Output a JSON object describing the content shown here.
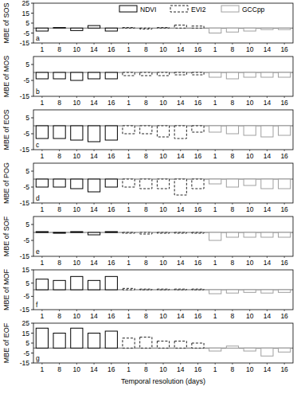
{
  "chart_data": [
    {
      "type": "bar",
      "annotation": "a",
      "y_label": "MBE of SOS",
      "legend": "top",
      "categories": [
        "1",
        "8",
        "10",
        "14",
        "16",
        "1",
        "8",
        "10",
        "14",
        "16",
        "1",
        "8",
        "10",
        "14",
        "16"
      ],
      "ylim": [
        -15,
        25
      ],
      "yticks": [
        -15,
        -5,
        5,
        15,
        25
      ],
      "series": [
        {
          "name": "NDVI",
          "color": "#000000",
          "line_style": "solid",
          "values": [
            -3,
            0.5,
            -2.5,
            2.5,
            -3,
            null,
            null,
            null,
            null,
            null,
            null,
            null,
            null,
            null,
            null
          ]
        },
        {
          "name": "EVI2",
          "color": "#222222",
          "line_style": "dashed",
          "values": [
            null,
            null,
            null,
            null,
            null,
            0.5,
            -1,
            0.5,
            3,
            2,
            null,
            null,
            null,
            null,
            null
          ]
        },
        {
          "name": "GCCpp",
          "color": "#a0a0a0",
          "line_style": "solid",
          "values": [
            null,
            null,
            null,
            null,
            null,
            null,
            null,
            null,
            null,
            null,
            -5,
            -4,
            -3,
            -1.5,
            -1.5
          ]
        }
      ]
    },
    {
      "type": "bar",
      "annotation": "b",
      "y_label": "MBE of MOS",
      "categories": [
        "1",
        "8",
        "10",
        "14",
        "16",
        "1",
        "8",
        "10",
        "14",
        "16",
        "1",
        "8",
        "10",
        "14",
        "16"
      ],
      "ylim": [
        -15,
        10
      ],
      "yticks": [
        -15,
        -5,
        5
      ],
      "series": [
        {
          "color": "#000000",
          "line_style": "solid",
          "values": [
            -4,
            -4,
            -5,
            -4,
            -4,
            null,
            null,
            null,
            null,
            null,
            null,
            null,
            null,
            null,
            null
          ]
        },
        {
          "color": "#222222",
          "line_style": "dashed",
          "values": [
            null,
            null,
            null,
            null,
            null,
            -2,
            -2,
            -2,
            -1.5,
            -1.5,
            null,
            null,
            null,
            null,
            null
          ]
        },
        {
          "color": "#a0a0a0",
          "line_style": "solid",
          "values": [
            null,
            null,
            null,
            null,
            null,
            null,
            null,
            null,
            null,
            null,
            -3,
            -4,
            -3,
            -3,
            -3
          ]
        }
      ]
    },
    {
      "type": "bar",
      "annotation": "c",
      "y_label": "MBE of EOS",
      "categories": [
        "1",
        "8",
        "10",
        "14",
        "16",
        "1",
        "8",
        "10",
        "14",
        "16",
        "1",
        "8",
        "10",
        "14",
        "16"
      ],
      "ylim": [
        -15,
        10
      ],
      "yticks": [
        -15,
        -5,
        5
      ],
      "series": [
        {
          "color": "#000000",
          "line_style": "solid",
          "values": [
            -8,
            -8,
            -9,
            -10,
            -9,
            null,
            null,
            null,
            null,
            null,
            null,
            null,
            null,
            null,
            null
          ]
        },
        {
          "color": "#222222",
          "line_style": "dashed",
          "values": [
            null,
            null,
            null,
            null,
            null,
            -5,
            -5,
            -7,
            -8,
            -4,
            null,
            null,
            null,
            null,
            null
          ]
        },
        {
          "color": "#a0a0a0",
          "line_style": "solid",
          "values": [
            null,
            null,
            null,
            null,
            null,
            null,
            null,
            null,
            null,
            null,
            -4,
            -5,
            -6,
            -7,
            -6
          ]
        }
      ]
    },
    {
      "type": "bar",
      "annotation": "d",
      "y_label": "MBE of POG",
      "categories": [
        "1",
        "8",
        "10",
        "14",
        "16",
        "1",
        "8",
        "10",
        "14",
        "16",
        "1",
        "8",
        "10",
        "14",
        "16"
      ],
      "ylim": [
        -15,
        10
      ],
      "yticks": [
        -15,
        -5,
        5
      ],
      "series": [
        {
          "color": "#000000",
          "line_style": "solid",
          "values": [
            -5,
            -5,
            -6,
            -8,
            -5,
            null,
            null,
            null,
            null,
            null,
            null,
            null,
            null,
            null,
            null
          ]
        },
        {
          "color": "#222222",
          "line_style": "dashed",
          "values": [
            null,
            null,
            null,
            null,
            null,
            -5,
            -6,
            -6,
            -10,
            -6,
            null,
            null,
            null,
            null,
            null
          ]
        },
        {
          "color": "#a0a0a0",
          "line_style": "solid",
          "values": [
            null,
            null,
            null,
            null,
            null,
            null,
            null,
            null,
            null,
            null,
            -3,
            -5,
            -4,
            -6,
            -6
          ]
        }
      ]
    },
    {
      "type": "bar",
      "annotation": "e",
      "y_label": "MBE of SOF",
      "categories": [
        "1",
        "8",
        "10",
        "14",
        "16",
        "1",
        "8",
        "10",
        "14",
        "16",
        "1",
        "8",
        "10",
        "14",
        "16"
      ],
      "ylim": [
        -15,
        10
      ],
      "yticks": [
        -15,
        -5,
        5
      ],
      "series": [
        {
          "color": "#000000",
          "line_style": "solid",
          "values": [
            0.5,
            -0.5,
            0.5,
            -1.5,
            0.5,
            null,
            null,
            null,
            null,
            null,
            null,
            null,
            null,
            null,
            null
          ]
        },
        {
          "color": "#222222",
          "line_style": "dashed",
          "values": [
            null,
            null,
            null,
            null,
            null,
            -0.5,
            -1,
            -0.5,
            -0.5,
            -0.5,
            null,
            null,
            null,
            null,
            null
          ]
        },
        {
          "color": "#a0a0a0",
          "line_style": "solid",
          "values": [
            null,
            null,
            null,
            null,
            null,
            null,
            null,
            null,
            null,
            null,
            -5,
            -3,
            -3,
            -3,
            -3
          ]
        }
      ]
    },
    {
      "type": "bar",
      "annotation": "f",
      "y_label": "MBE of MOF",
      "categories": [
        "1",
        "8",
        "10",
        "14",
        "16",
        "1",
        "8",
        "10",
        "14",
        "16",
        "1",
        "8",
        "10",
        "14",
        "16"
      ],
      "ylim": [
        -15,
        15
      ],
      "yticks": [
        -15,
        -5,
        5,
        15
      ],
      "series": [
        {
          "color": "#000000",
          "line_style": "solid",
          "values": [
            8,
            7,
            10,
            7,
            10,
            null,
            null,
            null,
            null,
            null,
            null,
            null,
            null,
            null,
            null
          ]
        },
        {
          "color": "#222222",
          "line_style": "dashed",
          "values": [
            null,
            null,
            null,
            null,
            null,
            1,
            0.5,
            0.5,
            0.5,
            0.5,
            null,
            null,
            null,
            null,
            null
          ]
        },
        {
          "color": "#a0a0a0",
          "line_style": "solid",
          "values": [
            null,
            null,
            null,
            null,
            null,
            null,
            null,
            null,
            null,
            null,
            -3,
            -2.5,
            -2,
            -2.5,
            -2
          ]
        }
      ]
    },
    {
      "type": "bar",
      "annotation": "g",
      "y_label": "MBE of EOF",
      "x_label": "Temporal resolution (days)",
      "categories": [
        "1",
        "8",
        "10",
        "14",
        "16",
        "1",
        "8",
        "10",
        "14",
        "16",
        "1",
        "8",
        "10",
        "14",
        "16"
      ],
      "ylim": [
        -15,
        25
      ],
      "yticks": [
        -15,
        -5,
        5,
        15,
        25
      ],
      "series": [
        {
          "color": "#000000",
          "line_style": "solid",
          "values": [
            20,
            15,
            20,
            15,
            17,
            null,
            null,
            null,
            null,
            null,
            null,
            null,
            null,
            null,
            null
          ]
        },
        {
          "color": "#222222",
          "line_style": "dashed",
          "values": [
            null,
            null,
            null,
            null,
            null,
            10,
            11,
            7,
            7,
            5,
            null,
            null,
            null,
            null,
            null
          ]
        },
        {
          "color": "#a0a0a0",
          "line_style": "solid",
          "values": [
            null,
            null,
            null,
            null,
            null,
            null,
            null,
            null,
            null,
            null,
            -3,
            2,
            -3,
            -8,
            -4
          ]
        }
      ]
    }
  ]
}
